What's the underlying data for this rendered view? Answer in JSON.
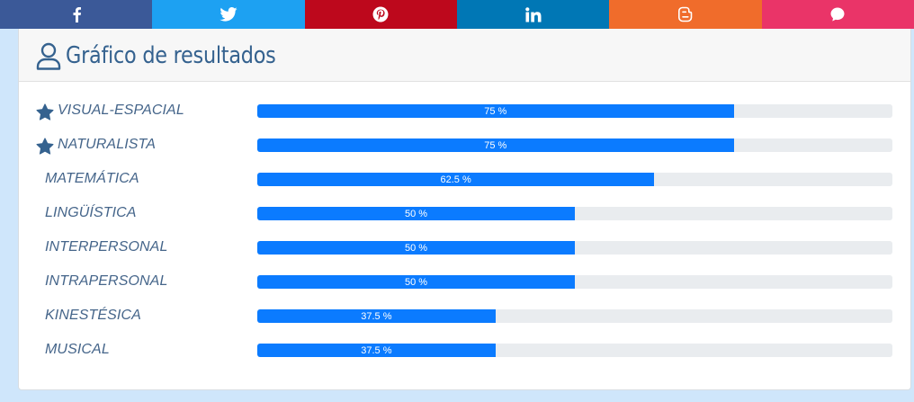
{
  "share": [
    {
      "id": "facebook",
      "color": "#3b5998",
      "icon": "facebook-icon"
    },
    {
      "id": "twitter",
      "color": "#1da1f2",
      "icon": "twitter-icon"
    },
    {
      "id": "pinterest",
      "color": "#bd081c",
      "icon": "pinterest-icon"
    },
    {
      "id": "linkedin",
      "color": "#0077b5",
      "icon": "linkedin-icon"
    },
    {
      "id": "blogger",
      "color": "#f06c2b",
      "icon": "blogger-icon"
    },
    {
      "id": "whatsapp",
      "color": "#ea3468",
      "icon": "chat-bubble-icon"
    }
  ],
  "card": {
    "title": "Gráfico de resultados"
  },
  "results": [
    {
      "label": "VISUAL-ESPACIAL",
      "value": 75,
      "display": "75 %",
      "starred": true
    },
    {
      "label": "NATURALISTA",
      "value": 75,
      "display": "75 %",
      "starred": true
    },
    {
      "label": "MATEMÁTICA",
      "value": 62.5,
      "display": "62.5 %",
      "starred": false
    },
    {
      "label": "LINGÜÍSTICA",
      "value": 50,
      "display": "50 %",
      "starred": false
    },
    {
      "label": "INTERPERSONAL",
      "value": 50,
      "display": "50 %",
      "starred": false
    },
    {
      "label": "INTRAPERSONAL",
      "value": 50,
      "display": "50 %",
      "starred": false
    },
    {
      "label": "KINESTÉSICA",
      "value": 37.5,
      "display": "37.5 %",
      "starred": false
    },
    {
      "label": "MUSICAL",
      "value": 37.5,
      "display": "37.5 %",
      "starred": false
    }
  ],
  "colors": {
    "bar_fill": "#0b7bff",
    "bar_track": "#e9ecef",
    "label": "#45658a",
    "title": "#35628f"
  }
}
